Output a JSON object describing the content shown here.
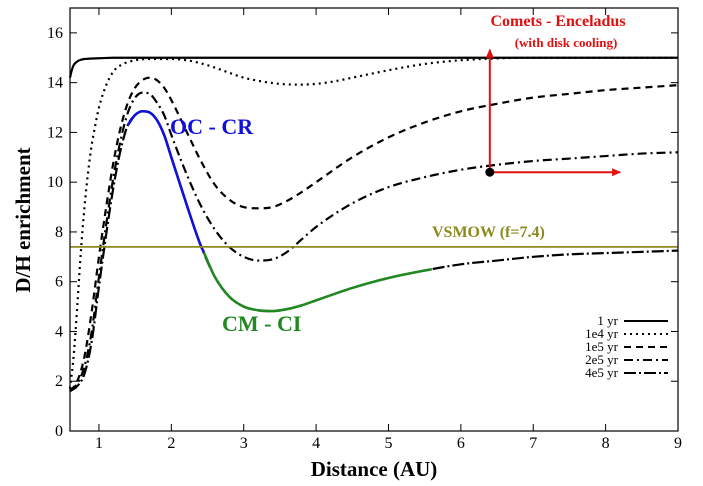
{
  "chart_data": {
    "type": "line",
    "xlabel": "Distance (AU)",
    "ylabel": "D/H enrichment",
    "xlim": [
      0.6,
      9
    ],
    "ylim": [
      0,
      17
    ],
    "x_ticks": [
      1,
      2,
      3,
      4,
      5,
      6,
      7,
      8,
      9
    ],
    "y_ticks": [
      0,
      2,
      4,
      6,
      8,
      10,
      12,
      14,
      16
    ],
    "legend_position": "bottom-right",
    "series": [
      {
        "name": "1 yr",
        "style": "solid",
        "color": "#000000",
        "x": [
          0.6,
          0.62,
          0.65,
          0.7,
          0.75,
          0.8,
          0.9,
          1.0,
          1.2,
          1.5,
          2,
          3,
          5,
          7,
          9
        ],
        "y": [
          14.2,
          14.45,
          14.7,
          14.85,
          14.92,
          14.95,
          14.97,
          14.98,
          15,
          15,
          15,
          15,
          15,
          15,
          15
        ]
      },
      {
        "name": "1e4 yr",
        "style": "dotted",
        "color": "#000000",
        "x": [
          0.6,
          0.65,
          0.7,
          0.75,
          0.8,
          0.85,
          0.9,
          0.95,
          1.0,
          1.1,
          1.2,
          1.3,
          1.5,
          1.75,
          2.0,
          2.25,
          2.5,
          2.75,
          3.0,
          3.25,
          3.5,
          3.75,
          4.0,
          4.25,
          4.5,
          4.75,
          5.0,
          5.5,
          6.0,
          7.0,
          8.0,
          9.0
        ],
        "y": [
          1.7,
          3.0,
          5.0,
          7.2,
          9.0,
          10.4,
          11.5,
          12.3,
          13.0,
          13.9,
          14.45,
          14.7,
          14.9,
          14.95,
          14.95,
          14.88,
          14.7,
          14.45,
          14.2,
          14.05,
          13.95,
          13.92,
          13.95,
          14.05,
          14.2,
          14.35,
          14.5,
          14.75,
          14.9,
          15.0,
          15.0,
          15.0
        ]
      },
      {
        "name": "1e5 yr",
        "style": "dashed",
        "color": "#000000",
        "x": [
          0.6,
          0.7,
          0.8,
          0.9,
          1.0,
          1.1,
          1.2,
          1.3,
          1.4,
          1.5,
          1.6,
          1.7,
          1.8,
          1.9,
          2.0,
          2.2,
          2.4,
          2.6,
          2.8,
          3.0,
          3.2,
          3.4,
          3.6,
          3.8,
          4.0,
          4.5,
          5.0,
          5.5,
          6.0,
          6.5,
          7.0,
          7.5,
          8.0,
          8.5,
          9.0
        ],
        "y": [
          1.6,
          2.0,
          3.0,
          4.8,
          7.0,
          9.0,
          10.8,
          12.2,
          13.2,
          13.8,
          14.1,
          14.2,
          14.1,
          13.8,
          13.3,
          12.1,
          10.9,
          9.9,
          9.3,
          9.0,
          8.95,
          9.0,
          9.25,
          9.6,
          10.0,
          11.0,
          11.8,
          12.4,
          12.85,
          13.15,
          13.4,
          13.55,
          13.7,
          13.8,
          13.9
        ]
      },
      {
        "name": "2e5 yr",
        "style": "dashdot",
        "color": "#000000",
        "x": [
          0.6,
          0.7,
          0.8,
          0.9,
          1.0,
          1.1,
          1.2,
          1.3,
          1.4,
          1.5,
          1.6,
          1.7,
          1.8,
          1.9,
          2.0,
          2.2,
          2.4,
          2.6,
          2.8,
          3.0,
          3.2,
          3.4,
          3.6,
          3.8,
          4.0,
          4.5,
          5.0,
          5.5,
          6.0,
          6.5,
          7.0,
          7.5,
          8.0,
          8.5,
          9.0
        ],
        "y": [
          1.6,
          1.9,
          2.6,
          4.0,
          6.2,
          8.3,
          10.2,
          11.7,
          12.8,
          13.4,
          13.6,
          13.55,
          13.2,
          12.7,
          11.9,
          10.4,
          9.1,
          8.1,
          7.4,
          7.0,
          6.85,
          6.9,
          7.2,
          7.7,
          8.2,
          9.15,
          9.8,
          10.2,
          10.5,
          10.7,
          10.85,
          10.95,
          11.05,
          11.15,
          11.2
        ]
      },
      {
        "name": "4e5 yr",
        "style": "longdash",
        "color": "#000000",
        "x": [
          0.6,
          0.7,
          0.8,
          0.9,
          1.0,
          1.1,
          1.2,
          1.3,
          1.4,
          1.5,
          1.6,
          1.7,
          1.8,
          1.9,
          2.0,
          2.2,
          2.4,
          2.6,
          2.8,
          3.0,
          3.2,
          3.4,
          3.6,
          3.8,
          4.0,
          4.5,
          5.0,
          5.5,
          6.0,
          6.5,
          7.0,
          7.5,
          8.0,
          8.5,
          9.0
        ],
        "y": [
          1.6,
          1.8,
          2.3,
          3.6,
          5.8,
          7.9,
          9.8,
          11.3,
          12.3,
          12.7,
          12.85,
          12.8,
          12.5,
          11.9,
          11.0,
          9.2,
          7.5,
          6.2,
          5.4,
          5.0,
          4.85,
          4.82,
          4.9,
          5.05,
          5.25,
          5.75,
          6.15,
          6.45,
          6.7,
          6.85,
          7.0,
          7.1,
          7.15,
          7.2,
          7.25
        ]
      }
    ],
    "highlights": [
      {
        "label": "OC - CR",
        "color": "#1010dd",
        "series_index": 4,
        "x_range": [
          1.4,
          2.45
        ]
      },
      {
        "label": "CM - CI",
        "color": "#228822",
        "series_index": 4,
        "x_range": [
          2.45,
          5.6
        ]
      }
    ],
    "reference_line": {
      "label": "VSMOW (f=7.4)",
      "y": 7.4,
      "color": "#8a8a1e"
    },
    "annotation": {
      "line1": "Comets - Enceladus",
      "line2": "(with disk cooling)",
      "color": "#e01010",
      "point": [
        6.4,
        10.4
      ],
      "arrow_up_to": 15.0,
      "arrow_right_to": 8.2
    }
  }
}
